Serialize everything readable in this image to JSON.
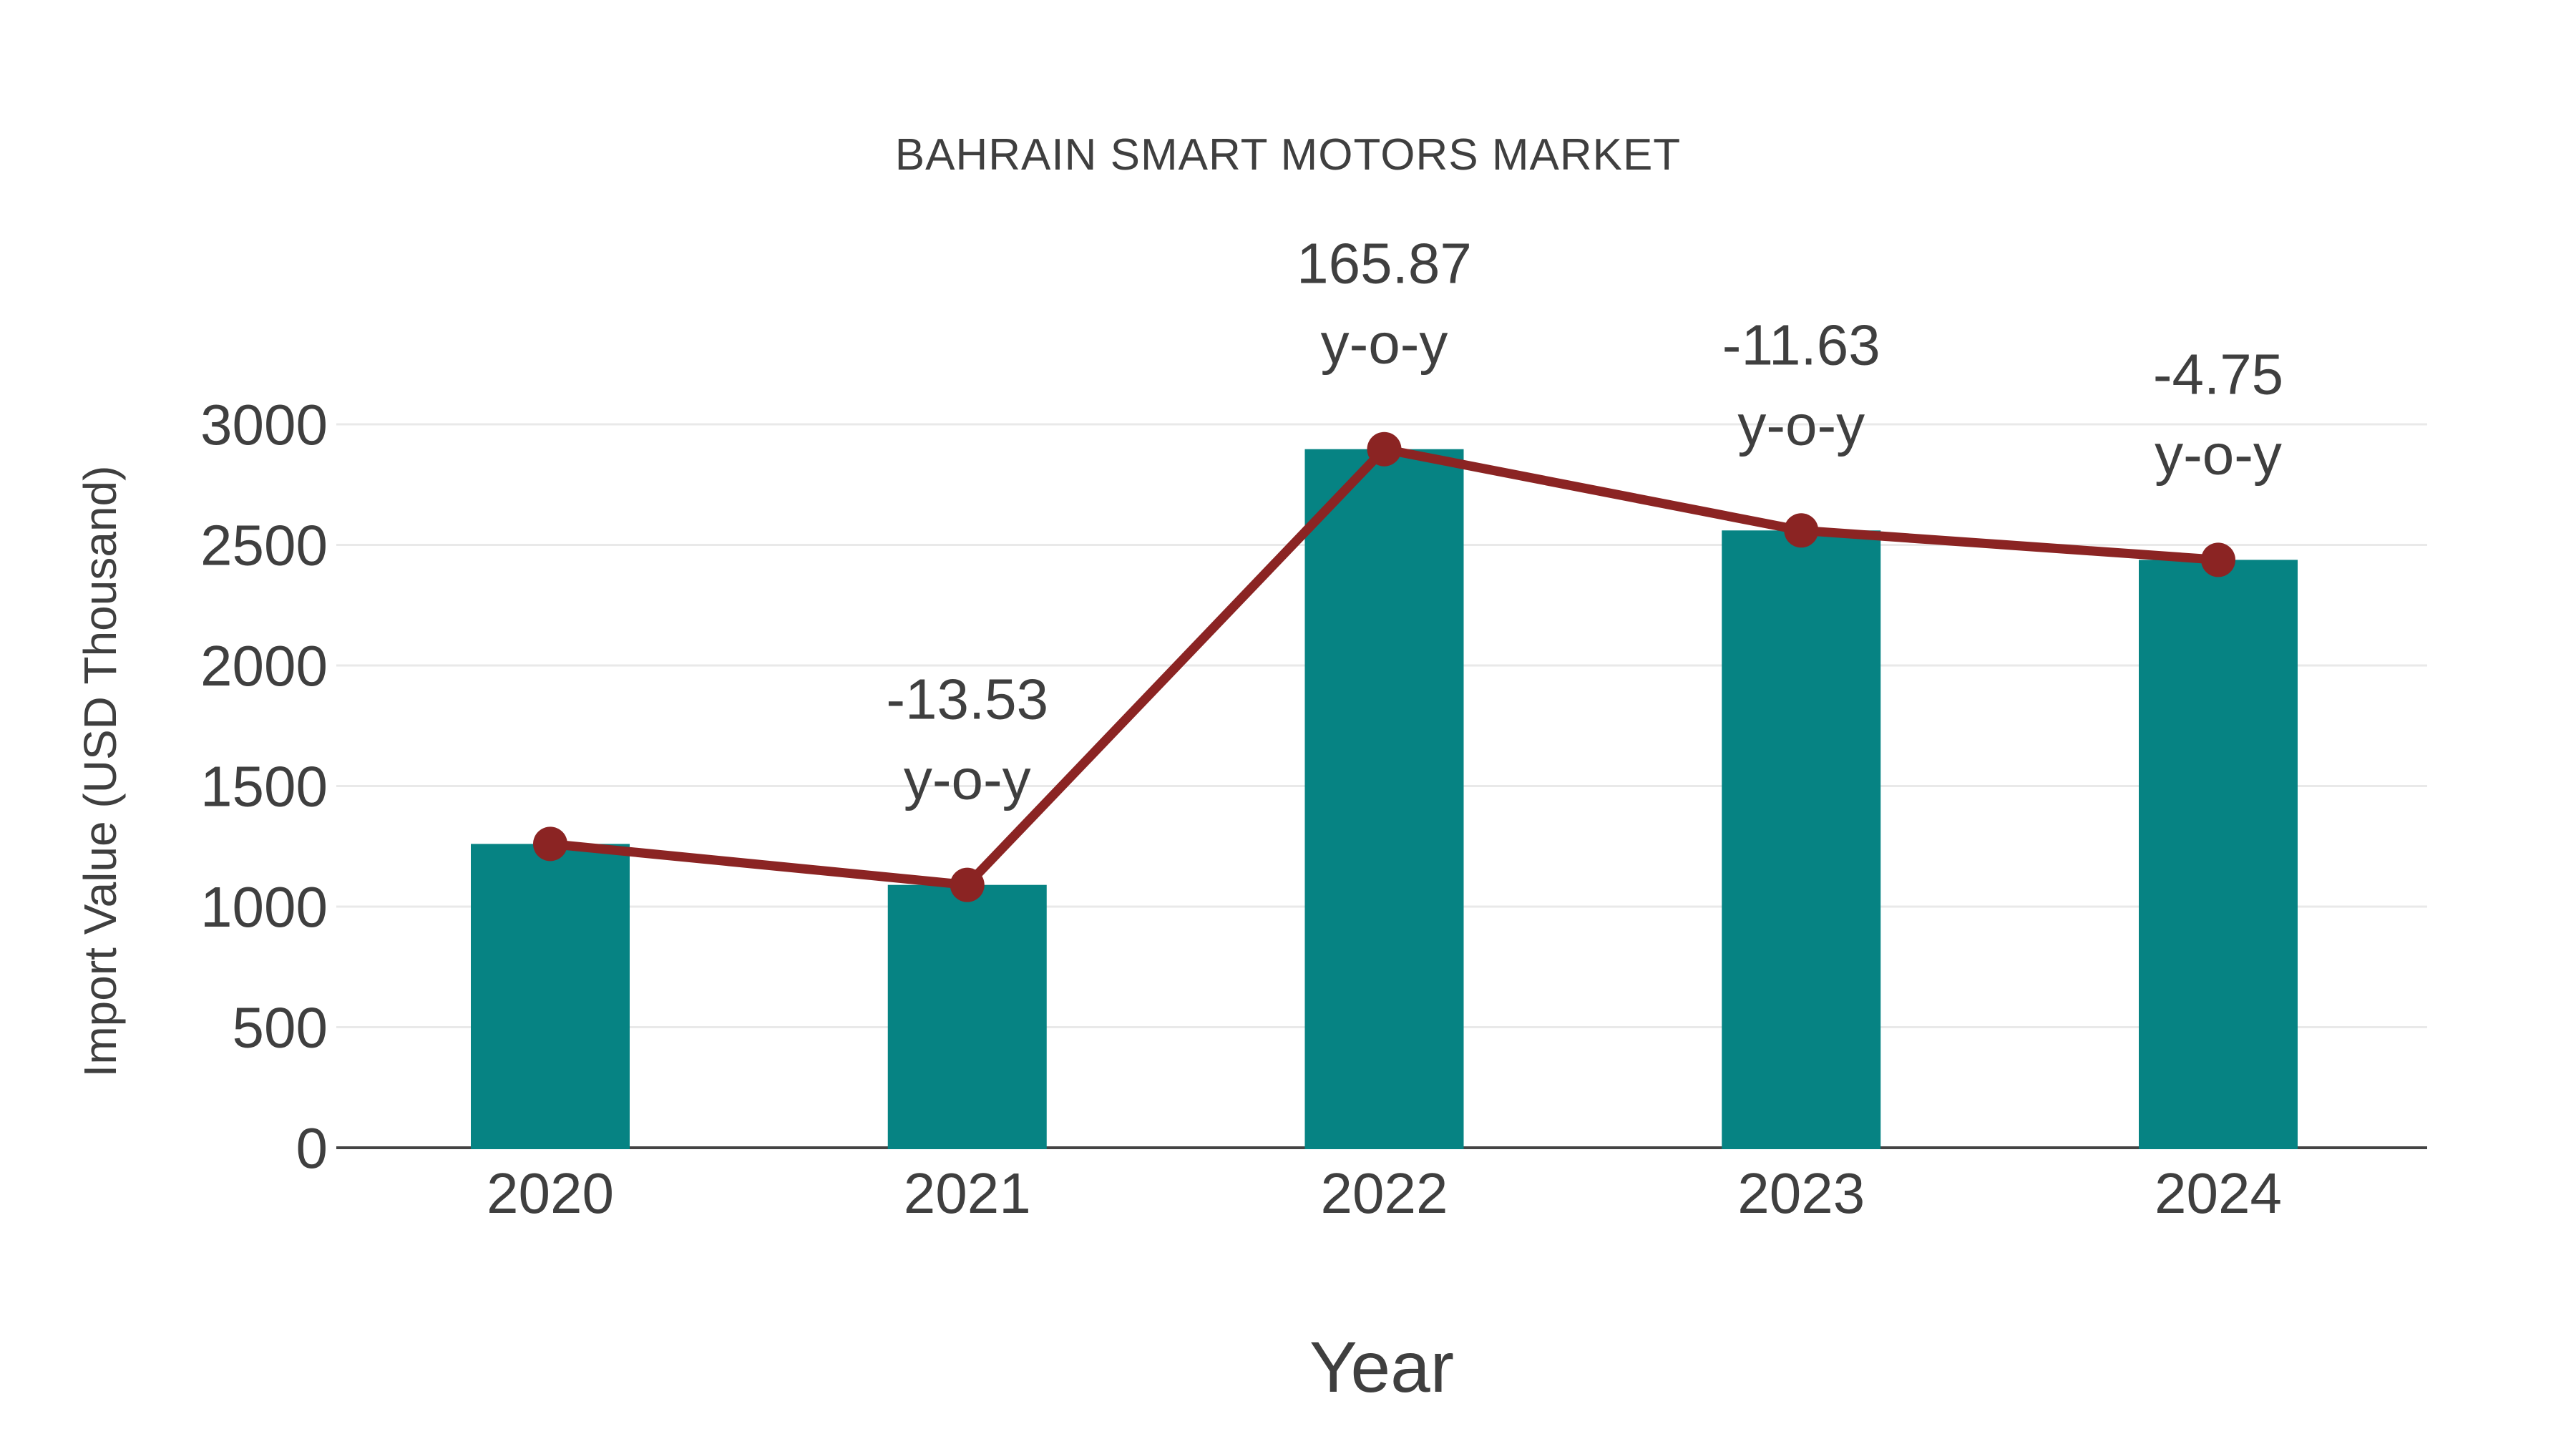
{
  "title": "BAHRAIN SMART MOTORS MARKET",
  "chart_data": {
    "type": "bar",
    "title": "BAHRAIN SMART MOTORS MARKET",
    "xlabel": "Year",
    "ylabel": "Import Value (USD Thousand)",
    "categories": [
      "2020",
      "2021",
      "2022",
      "2023",
      "2024"
    ],
    "series": [
      {
        "name": "Import Value bars",
        "type": "bar",
        "color": "#068383",
        "values": [
          1260,
          1090,
          2897,
          2560,
          2438
        ]
      },
      {
        "name": "Import Value trend",
        "type": "line",
        "color": "#8b2423",
        "values": [
          1260,
          1090,
          2897,
          2560,
          2438
        ]
      }
    ],
    "annotations": [
      {
        "category": "2021",
        "value": "-13.53",
        "label": "y-o-y"
      },
      {
        "category": "2022",
        "value": "165.87",
        "label": "y-o-y"
      },
      {
        "category": "2023",
        "value": "-11.63",
        "label": "y-o-y"
      },
      {
        "category": "2024",
        "value": "-4.75",
        "label": "y-o-y"
      }
    ],
    "yticks": [
      0,
      500,
      1000,
      1500,
      2000,
      2500,
      3000
    ],
    "ylim": [
      0,
      3000
    ],
    "grid": "horizontal",
    "legend": "none",
    "colors": {
      "bar": "#068383",
      "line": "#8b2423",
      "text": "#3f3f3f",
      "grid": "#e9e9e9",
      "axis": "#444444",
      "background": "#ffffff"
    }
  }
}
